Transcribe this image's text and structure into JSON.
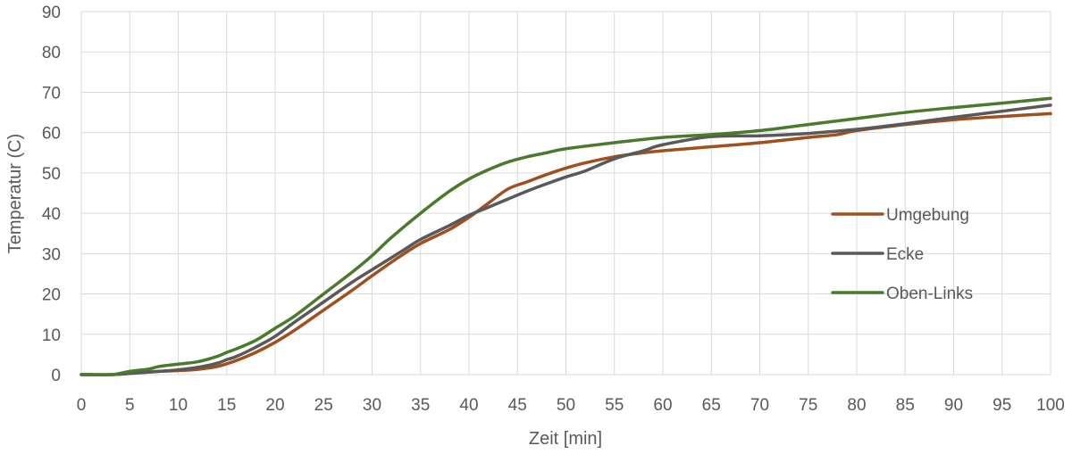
{
  "chart_data": {
    "type": "line",
    "title": "",
    "xlabel": "Zeit [min]",
    "ylabel": "Temperatur (C)",
    "xlim": [
      0,
      100
    ],
    "ylim": [
      0,
      90
    ],
    "xticks": [
      0,
      5,
      10,
      15,
      20,
      25,
      30,
      35,
      40,
      45,
      50,
      55,
      60,
      65,
      70,
      75,
      80,
      85,
      90,
      95,
      100
    ],
    "yticks": [
      0,
      10,
      20,
      30,
      40,
      50,
      60,
      70,
      80,
      90
    ],
    "grid": true,
    "legend_position": "right",
    "series": [
      {
        "name": "Umgebung",
        "color": "#a0501e",
        "x": [
          0,
          3,
          5,
          8,
          10,
          12,
          14,
          16,
          18,
          20,
          22,
          25,
          28,
          30,
          33,
          35,
          38,
          40,
          42,
          44,
          46,
          48,
          50,
          52,
          55,
          58,
          60,
          65,
          70,
          75,
          78,
          80,
          85,
          90,
          95,
          100
        ],
        "y": [
          0,
          0,
          0.3,
          0.8,
          1.0,
          1.3,
          2.0,
          3.5,
          5.5,
          8.0,
          11.0,
          16.0,
          21.0,
          24.5,
          29.5,
          32.5,
          36.0,
          39.0,
          42.5,
          46.0,
          47.8,
          49.6,
          51.2,
          52.5,
          54.0,
          55.0,
          55.5,
          56.5,
          57.5,
          58.8,
          59.5,
          60.5,
          62.0,
          63.2,
          64.0,
          64.7
        ]
      },
      {
        "name": "Ecke",
        "color": "#595959",
        "x": [
          0,
          3,
          5,
          8,
          10,
          12,
          14,
          15,
          16,
          18,
          20,
          22,
          25,
          28,
          30,
          33,
          35,
          38,
          40,
          42,
          44,
          46,
          48,
          50,
          52,
          55,
          58,
          60,
          65,
          70,
          75,
          80,
          85,
          90,
          95,
          100
        ],
        "y": [
          0,
          0,
          0.3,
          0.8,
          1.2,
          1.8,
          2.8,
          3.7,
          4.5,
          6.8,
          9.5,
          13.0,
          18.0,
          23.0,
          26.0,
          30.5,
          33.5,
          37.0,
          39.5,
          41.5,
          43.5,
          45.5,
          47.3,
          49.0,
          50.5,
          53.5,
          55.5,
          57.0,
          59.0,
          59.2,
          59.8,
          60.8,
          62.2,
          63.8,
          65.3,
          66.8
        ]
      },
      {
        "name": "Oben-Links",
        "color": "#4a7a2c",
        "x": [
          0,
          3,
          4,
          5,
          7,
          8,
          10,
          12,
          14,
          15,
          16,
          18,
          20,
          22,
          25,
          28,
          30,
          32,
          35,
          38,
          40,
          42,
          44,
          46,
          48,
          50,
          55,
          60,
          65,
          70,
          75,
          80,
          85,
          90,
          95,
          100
        ],
        "y": [
          0,
          0,
          0.3,
          0.8,
          1.4,
          2.0,
          2.6,
          3.2,
          4.5,
          5.5,
          6.4,
          8.5,
          11.5,
          14.5,
          20.0,
          25.5,
          29.5,
          34.0,
          40.0,
          45.5,
          48.5,
          50.8,
          52.7,
          54.0,
          55.0,
          56.0,
          57.5,
          58.8,
          59.5,
          60.5,
          62.0,
          63.5,
          65.0,
          66.2,
          67.3,
          68.5
        ]
      }
    ]
  }
}
